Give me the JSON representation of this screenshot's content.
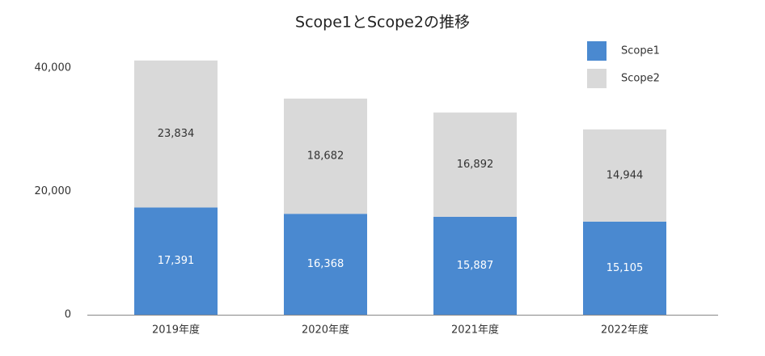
{
  "chart_data": {
    "type": "stacked_bar",
    "title": "Scope1とScope2の推移",
    "categories": [
      "2019年度",
      "2020年度",
      "2021年度",
      "2022年度"
    ],
    "series": [
      {
        "name": "Scope1",
        "color": "#4a89d0",
        "values": [
          17391,
          16368,
          15887,
          15105
        ],
        "value_labels": [
          "17,391",
          "16,368",
          "15,887",
          "15,105"
        ]
      },
      {
        "name": "Scope2",
        "color": "#d9d9d9",
        "values": [
          23834,
          18682,
          16892,
          14944
        ],
        "value_labels": [
          "23,834",
          "18,682",
          "16,892",
          "14,944"
        ]
      }
    ],
    "ylim": [
      0,
      45000
    ],
    "yticks": [
      0,
      {
        "value": 20000,
        "label": "20,000"
      },
      {
        "value": 40000,
        "label": "40,000"
      }
    ],
    "grid": false,
    "legend": "top-right"
  }
}
